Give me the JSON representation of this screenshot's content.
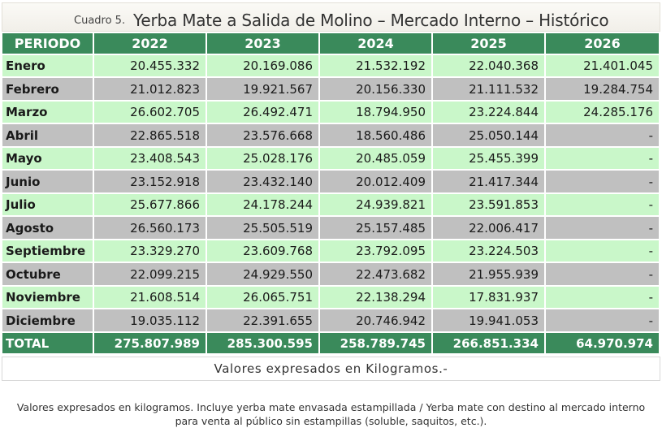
{
  "header": {
    "caption": "Cuadro 5.",
    "title": "Yerba Mate a Salida de Molino  – Mercado Interno – Histórico"
  },
  "table": {
    "columns": [
      "PERIODO",
      "2022",
      "2023",
      "2024",
      "2025",
      "2026"
    ],
    "rows": [
      {
        "month": "Enero",
        "values": [
          "20.455.332",
          "20.169.086",
          "21.532.192",
          "22.040.368",
          "21.401.045"
        ]
      },
      {
        "month": "Febrero",
        "values": [
          "21.012.823",
          "19.921.567",
          "20.156.330",
          "21.111.532",
          "19.284.754"
        ]
      },
      {
        "month": "Marzo",
        "values": [
          "26.602.705",
          "26.492.471",
          "18.794.950",
          "23.224.844",
          "24.285.176"
        ]
      },
      {
        "month": "Abril",
        "values": [
          "22.865.518",
          "23.576.668",
          "18.560.486",
          "25.050.144",
          "-"
        ]
      },
      {
        "month": "Mayo",
        "values": [
          "23.408.543",
          "25.028.176",
          "20.485.059",
          "25.455.399",
          "-"
        ]
      },
      {
        "month": "Junio",
        "values": [
          "23.152.918",
          "23.432.140",
          "20.012.409",
          "21.417.344",
          "-"
        ]
      },
      {
        "month": "Julio",
        "values": [
          "25.677.866",
          "24.178.244",
          "24.939.821",
          "23.591.853",
          "-"
        ]
      },
      {
        "month": "Agosto",
        "values": [
          "26.560.173",
          "25.505.519",
          "25.157.485",
          "22.006.417",
          "-"
        ]
      },
      {
        "month": "Septiembre",
        "values": [
          "23.329.270",
          "23.609.768",
          "23.792.095",
          "23.224.503",
          "-"
        ]
      },
      {
        "month": "Octubre",
        "values": [
          "22.099.215",
          "24.929.550",
          "22.473.682",
          "21.955.939",
          "-"
        ]
      },
      {
        "month": "Noviembre",
        "values": [
          "21.608.514",
          "26.065.751",
          "22.138.294",
          "17.831.937",
          "-"
        ]
      },
      {
        "month": "Diciembre",
        "values": [
          "19.035.112",
          "22.391.655",
          "20.746.942",
          "19.941.053",
          "-"
        ]
      }
    ],
    "total": {
      "label": "TOTAL",
      "values": [
        "275.807.989",
        "285.300.595",
        "258.789.745",
        "266.851.334",
        "64.970.974"
      ]
    }
  },
  "note": "Valores expresados en Kilogramos.-",
  "footnote": {
    "line1": "Valores expresados en kilogramos. Incluye yerba mate envasada estampillada / Yerba mate con destino al mercado interno",
    "line2": "para venta al público sin estampillas (soluble, saquitos, etc.)."
  },
  "colors": {
    "header_green": "#3a8a5b",
    "row_light": "#c9f7c9",
    "row_dark": "#c0c0c0"
  }
}
